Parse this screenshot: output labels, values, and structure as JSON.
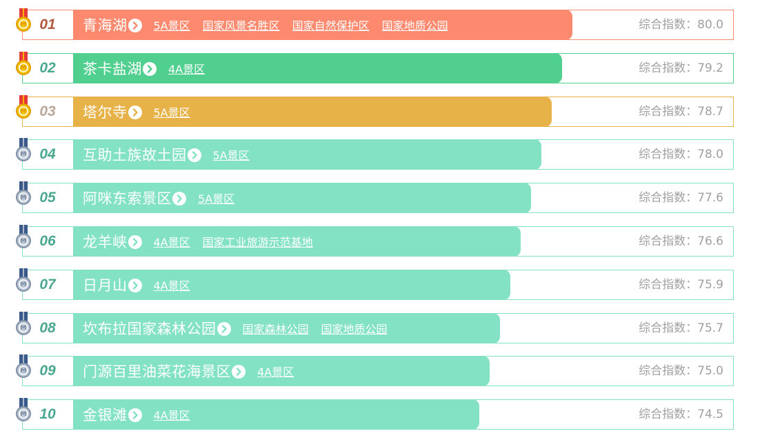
{
  "score_label": "综合指数：",
  "colors": {
    "rank1": "#fd8a6e",
    "rank2": "#50cf8f",
    "rank3": "#e7b247",
    "other": "#83e2c4",
    "gold_medal": "#f5c400",
    "silver_medal": "#b8c4d2"
  },
  "items": [
    {
      "rank": "01",
      "name": "青海湖",
      "tags": [
        "5A景区",
        "国家风景名胜区",
        "国家自然保护区",
        "国家地质公园"
      ],
      "score": "80.0",
      "index_value": 80.0
    },
    {
      "rank": "02",
      "name": "茶卡盐湖",
      "tags": [
        "4A景区"
      ],
      "score": "79.2",
      "index_value": 79.2
    },
    {
      "rank": "03",
      "name": "塔尔寺",
      "tags": [
        "5A景区"
      ],
      "score": "78.7",
      "index_value": 78.7
    },
    {
      "rank": "04",
      "name": "互助土族故土园",
      "tags": [
        "5A景区"
      ],
      "score": "78.0",
      "index_value": 78.0
    },
    {
      "rank": "05",
      "name": "阿咪东索景区",
      "tags": [
        "5A景区"
      ],
      "score": "77.6",
      "index_value": 77.6
    },
    {
      "rank": "06",
      "name": "龙羊峡",
      "tags": [
        "4A景区",
        "国家工业旅游示范基地"
      ],
      "score": "76.6",
      "index_value": 76.6
    },
    {
      "rank": "07",
      "name": "日月山",
      "tags": [
        "4A景区"
      ],
      "score": "75.9",
      "index_value": 75.9
    },
    {
      "rank": "08",
      "name": "坎布拉国家森林公园",
      "tags": [
        "国家森林公园",
        "国家地质公园"
      ],
      "score": "75.7",
      "index_value": 75.7
    },
    {
      "rank": "09",
      "name": "门源百里油菜花海景区",
      "tags": [
        "4A景区"
      ],
      "score": "75.0",
      "index_value": 75.0
    },
    {
      "rank": "10",
      "name": "金银滩",
      "tags": [
        "4A景区"
      ],
      "score": "74.5",
      "index_value": 74.5
    }
  ]
}
